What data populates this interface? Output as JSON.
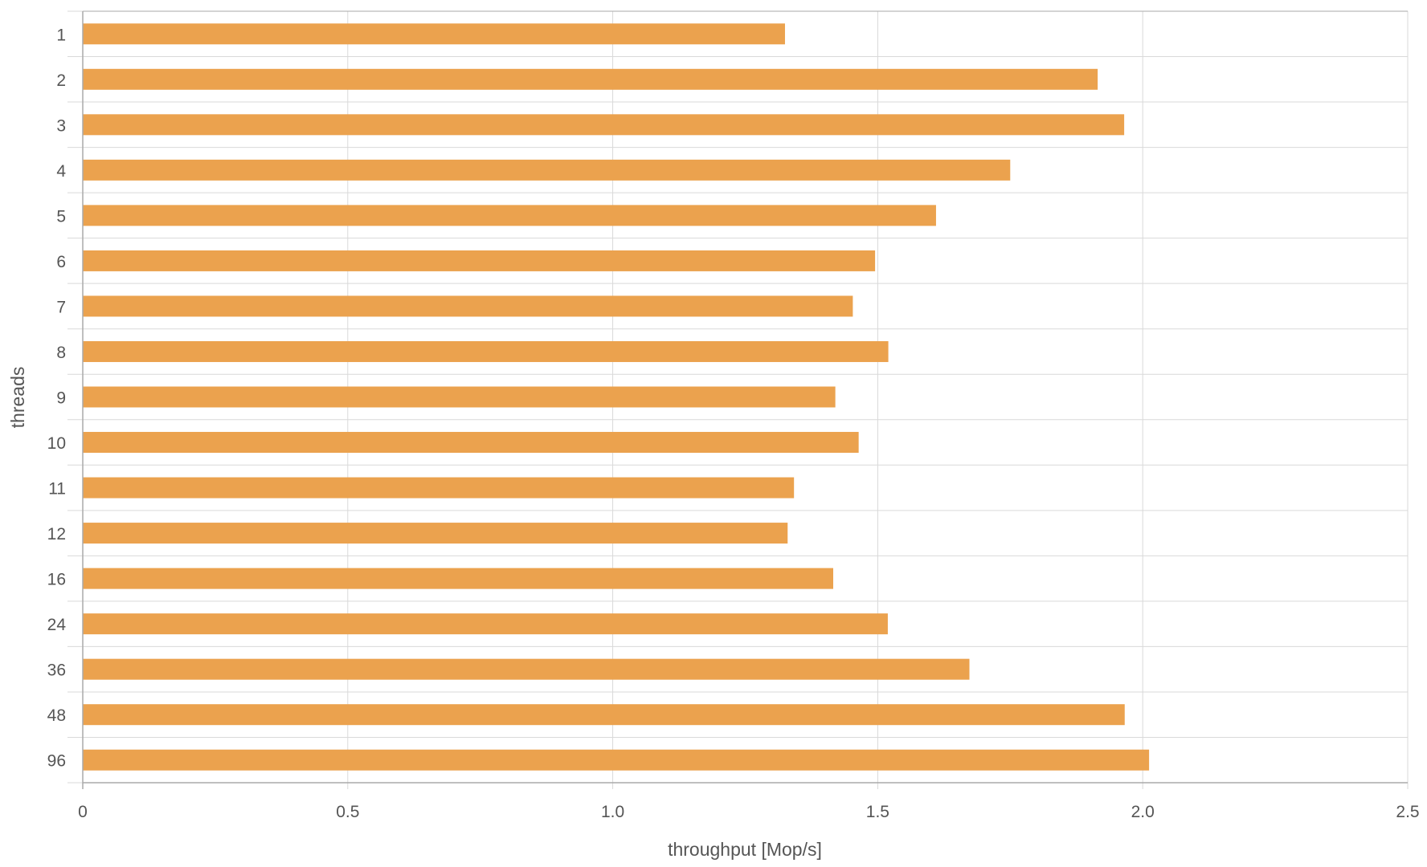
{
  "chart_data": {
    "type": "bar",
    "orientation": "horizontal",
    "categories": [
      "1",
      "2",
      "3",
      "4",
      "5",
      "6",
      "7",
      "8",
      "9",
      "10",
      "11",
      "12",
      "16",
      "24",
      "36",
      "48",
      "96"
    ],
    "series": [
      {
        "name": "throughput",
        "values": [
          1.325,
          1.915,
          1.965,
          1.75,
          1.61,
          1.495,
          1.453,
          1.52,
          1.42,
          1.464,
          1.342,
          1.33,
          1.416,
          1.519,
          1.673,
          1.966,
          2.012
        ]
      }
    ],
    "xlabel": "throughput [Mop/s]",
    "ylabel": "threads",
    "xlim": [
      0,
      2.5
    ],
    "xticks": [
      "0",
      "0.5",
      "1.0",
      "1.5",
      "2.0",
      "2.5"
    ],
    "xtick_values": [
      0,
      0.5,
      1.0,
      1.5,
      2.0,
      2.5
    ],
    "grid": true,
    "colors": {
      "bar": "#EBA24E",
      "grid": "#d9d9d9",
      "axis": "#aaaaaa",
      "text": "#555555"
    }
  }
}
